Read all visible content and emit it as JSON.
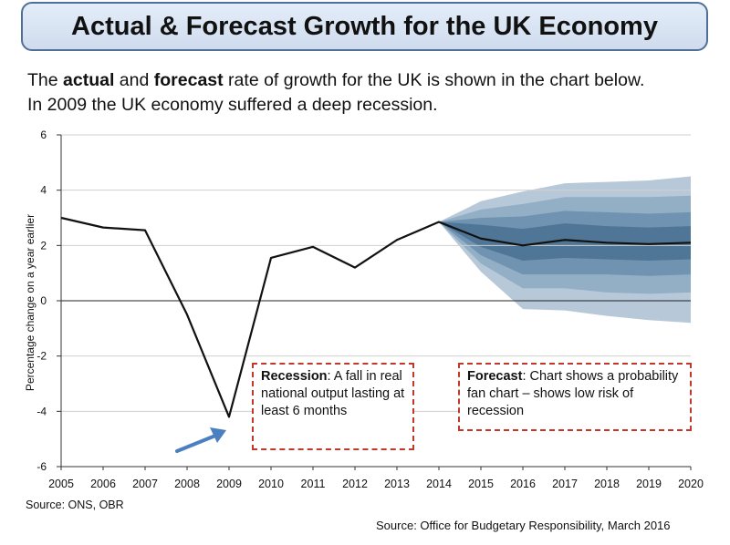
{
  "header": {
    "title": "Actual & Forecast Growth for the UK Economy"
  },
  "intro": {
    "line1_a": "The ",
    "line1_b": "actual",
    "line1_c": " and ",
    "line1_d": "forecast",
    "line1_e": " rate of growth for the UK is shown in the chart below.",
    "line2": "In 2009 the UK economy suffered a deep recession."
  },
  "notes": {
    "recession_bold": "Recession",
    "recession_text": ": A fall in real national output lasting at least 6 months",
    "forecast_bold": "Forecast",
    "forecast_text": ": Chart shows a probability fan chart – shows low risk of recession"
  },
  "sources": {
    "left": "Source: ONS, OBR",
    "bottom": "Source: Office for Budgetary Responsibility, March 2016"
  },
  "chart_data": {
    "type": "line",
    "ylabel": "Percentage change on a year earlier",
    "xlabel": "",
    "xlim": [
      2005,
      2020
    ],
    "ylim": [
      -6,
      6
    ],
    "yticks": [
      "6",
      "4",
      "2",
      "0",
      "-2",
      "-4",
      "-6"
    ],
    "xticks": [
      "2005",
      "2006",
      "2007",
      "2008",
      "2009",
      "2010",
      "2011",
      "2012",
      "2013",
      "2014",
      "2015",
      "2016",
      "2017",
      "2018",
      "2019",
      "2020"
    ],
    "grid": "horizontal",
    "series": [
      {
        "x": [
          2005,
          2006,
          2007,
          2008,
          2009,
          2010,
          2011,
          2012,
          2013,
          2014,
          2015,
          2016,
          2017,
          2018,
          2019,
          2020
        ],
        "values": [
          3.0,
          2.65,
          2.55,
          -0.5,
          -4.2,
          1.55,
          1.95,
          1.2,
          2.2,
          2.85,
          2.25,
          2.0,
          2.2,
          2.1,
          2.05,
          2.1
        ]
      }
    ],
    "fan": {
      "x": [
        2014,
        2015,
        2016,
        2017,
        2018,
        2019,
        2020
      ],
      "bands": [
        {
          "upper": [
            2.85,
            3.6,
            3.95,
            4.25,
            4.3,
            4.35,
            4.5
          ],
          "lower": [
            2.85,
            1.05,
            -0.3,
            -0.35,
            -0.55,
            -0.7,
            -0.8
          ]
        },
        {
          "upper": [
            2.85,
            3.3,
            3.5,
            3.75,
            3.75,
            3.75,
            3.8
          ],
          "lower": [
            2.85,
            1.35,
            0.45,
            0.45,
            0.3,
            0.25,
            0.3
          ]
        },
        {
          "upper": [
            2.85,
            3.0,
            3.05,
            3.25,
            3.2,
            3.15,
            3.2
          ],
          "lower": [
            2.85,
            1.65,
            0.95,
            0.95,
            0.95,
            0.9,
            0.95
          ]
        },
        {
          "upper": [
            2.85,
            2.75,
            2.6,
            2.8,
            2.7,
            2.65,
            2.7
          ],
          "lower": [
            2.85,
            1.95,
            1.45,
            1.55,
            1.5,
            1.45,
            1.5
          ]
        }
      ],
      "colors": [
        "#b7c9d9",
        "#92afc6",
        "#6f93b0",
        "#4f7697"
      ]
    },
    "arrow_color": "#4a7fc0"
  }
}
